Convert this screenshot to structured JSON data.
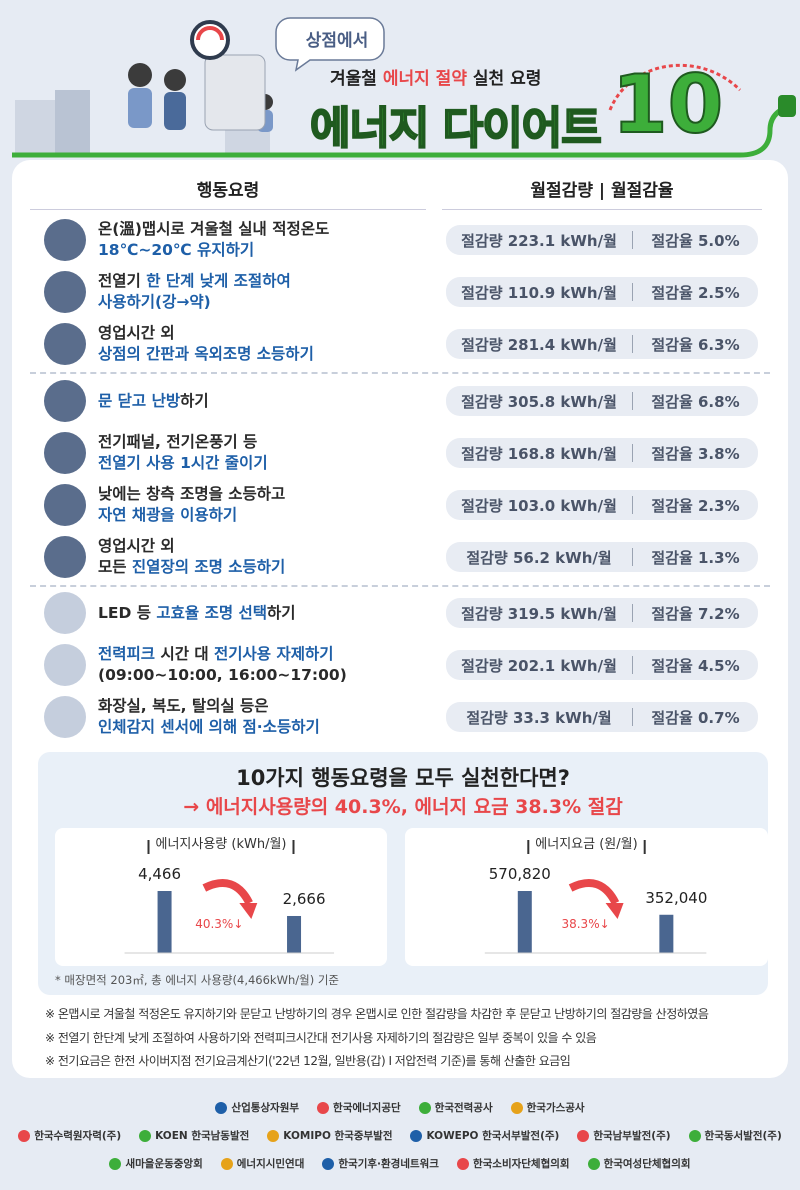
{
  "header": {
    "badge": "상점에서",
    "subtitle": [
      {
        "t": "겨울철 ",
        "hl": false
      },
      {
        "t": "에너지 절약",
        "hl": true
      },
      {
        "t": " 실천 요령",
        "hl": false
      }
    ],
    "title": "에너지 다이어트",
    "number": "10"
  },
  "columns": [
    "행동요령",
    "월절감량 | 월절감율"
  ],
  "items": [
    {
      "lines": [
        [
          {
            "t": "온(溫)맵시로 겨울철 실내 적정온도",
            "hl": false
          }
        ],
        [
          {
            "t": "18℃~20℃ 유지하기",
            "hl": true
          }
        ]
      ],
      "saving": "절감량 223.1 kWh/월",
      "rate": "절감율 5.0%"
    },
    {
      "lines": [
        [
          {
            "t": "전열기 ",
            "hl": false
          },
          {
            "t": "한 단계 낮게 조절하여",
            "hl": true
          }
        ],
        [
          {
            "t": "사용하기(강→약)",
            "hl": true
          }
        ]
      ],
      "saving": "절감량 110.9 kWh/월",
      "rate": "절감율 2.5%"
    },
    {
      "lines": [
        [
          {
            "t": "영업시간 외",
            "hl": false
          }
        ],
        [
          {
            "t": "상점의 간판과 옥외조명 소등하기",
            "hl": true
          }
        ]
      ],
      "saving": "절감량 281.4 kWh/월",
      "rate": "절감율 6.3%"
    },
    {
      "lines": [
        [
          {
            "t": "문 닫고 난방",
            "hl": true
          },
          {
            "t": "하기",
            "hl": false
          }
        ]
      ],
      "saving": "절감량 305.8 kWh/월",
      "rate": "절감율 6.8%"
    },
    {
      "lines": [
        [
          {
            "t": "전기패널, 전기온풍기 등",
            "hl": false
          }
        ],
        [
          {
            "t": "전열기 사용 1시간 줄이기",
            "hl": true
          }
        ]
      ],
      "saving": "절감량 168.8 kWh/월",
      "rate": "절감율 3.8%"
    },
    {
      "lines": [
        [
          {
            "t": "낮에는 창측 조명을 소등하고",
            "hl": false
          }
        ],
        [
          {
            "t": "자연 채광을 이용하기",
            "hl": true
          }
        ]
      ],
      "saving": "절감량 103.0 kWh/월",
      "rate": "절감율 2.3%"
    },
    {
      "lines": [
        [
          {
            "t": "영업시간 외",
            "hl": false
          }
        ],
        [
          {
            "t": "모든 ",
            "hl": false
          },
          {
            "t": "진열장의 조명 소등하기",
            "hl": true
          }
        ]
      ],
      "saving": "절감량 56.2 kWh/월",
      "rate": "절감율 1.3%"
    },
    {
      "lines": [
        [
          {
            "t": "LED 등 ",
            "hl": false
          },
          {
            "t": "고효율 조명 선택",
            "hl": true
          },
          {
            "t": "하기",
            "hl": false
          }
        ]
      ],
      "saving": "절감량 319.5 kWh/월",
      "rate": "절감율 7.2%"
    },
    {
      "lines": [
        [
          {
            "t": "전력피크 ",
            "hl": true
          },
          {
            "t": "시간 대 ",
            "hl": false
          },
          {
            "t": "전기사용 자제하기",
            "hl": true
          }
        ],
        [
          {
            "t": "(09:00~10:00, 16:00~17:00)",
            "hl": false
          }
        ]
      ],
      "saving": "절감량 202.1 kWh/월",
      "rate": "절감율 4.5%"
    },
    {
      "lines": [
        [
          {
            "t": "화장실, 복도, 탈의실 등은",
            "hl": false
          }
        ],
        [
          {
            "t": "인체감지 센서에 의해 점·소등하기",
            "hl": true
          }
        ]
      ],
      "saving": "절감량 33.3 kWh/월",
      "rate": "절감율 0.7%"
    }
  ],
  "summary": {
    "question": "10가지 행동요령을 모두 실천한다면?",
    "result": "→ 에너지사용량의  40.3%, 에너지 요금 38.3% 절감",
    "charts": [
      {
        "title": "에너지사용량 (kWh/월)",
        "values": [
          4466,
          2666
        ],
        "value_labels": [
          "4,466",
          "2,666"
        ],
        "change": "40.3%↓"
      },
      {
        "title": "에너지요금 (원/월)",
        "values": [
          570820,
          352040
        ],
        "value_labels": [
          "570,820",
          "352,040"
        ],
        "change": "38.3%↓"
      }
    ],
    "footnote": "* 매장면적 203㎡, 총 에너지 사용량(4,466kWh/월) 기준"
  },
  "notes": [
    "※ 온맵시로 겨울철 적정온도 유지하기와 문닫고 난방하기의 경우 온맵시로 인한 절감량을 차감한 후 문닫고 난방하기의 절감량을 산정하였음",
    "※ 전열기 한단계 낮게 조절하여 사용하기와 전력피크시간대 전기사용 자제하기의 절감량은 일부 중복이 있을 수 있음",
    "※ 전기요금은 한전 사이버지점 전기요금계산기('22년 12월, 일반용(갑) I 저압전력 기준)를 통해 산출한 요금임"
  ],
  "logos": [
    [
      "산업통상자원부",
      "한국에너지공단",
      "한국전력공사",
      "한국가스공사"
    ],
    [
      "한국수력원자력(주)",
      "KOEN 한국남동발전",
      "KOMIPO 한국중부발전",
      "KOWEPO 한국서부발전(주)",
      "한국남부발전(주)",
      "한국동서발전(주)"
    ],
    [
      "새마을운동중앙회",
      "에너지시민연대",
      "한국기후·환경네트워크",
      "한국소비자단체협의회",
      "한국여성단체협의회"
    ]
  ]
}
